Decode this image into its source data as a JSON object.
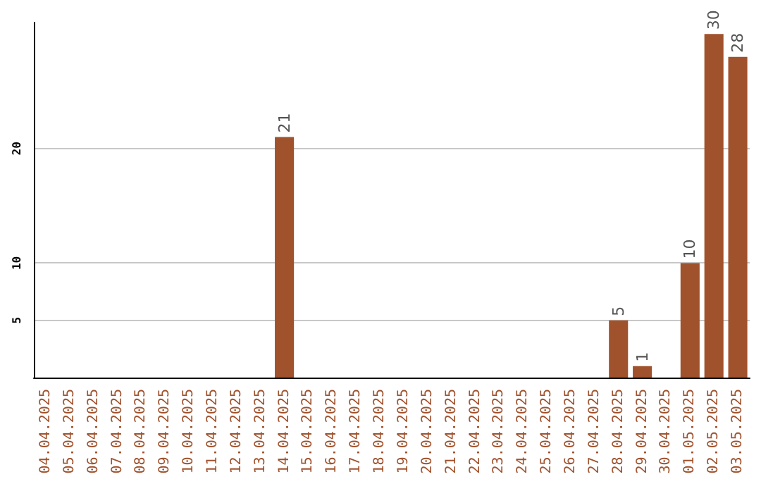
{
  "chart_data": {
    "type": "bar",
    "categories": [
      "04.04.2025",
      "05.04.2025",
      "06.04.2025",
      "07.04.2025",
      "08.04.2025",
      "09.04.2025",
      "10.04.2025",
      "11.04.2025",
      "12.04.2025",
      "13.04.2025",
      "14.04.2025",
      "15.04.2025",
      "16.04.2025",
      "17.04.2025",
      "18.04.2025",
      "19.04.2025",
      "20.04.2025",
      "21.04.2025",
      "22.04.2025",
      "23.04.2025",
      "24.04.2025",
      "25.04.2025",
      "26.04.2025",
      "27.04.2025",
      "28.04.2025",
      "29.04.2025",
      "30.04.2025",
      "01.05.2025",
      "02.05.2025",
      "03.05.2025"
    ],
    "values": [
      0,
      0,
      0,
      0,
      0,
      0,
      0,
      0,
      0,
      0,
      21,
      0,
      0,
      0,
      0,
      0,
      0,
      0,
      0,
      0,
      0,
      0,
      0,
      0,
      5,
      1,
      0,
      10,
      30,
      28
    ],
    "value_labels": [
      null,
      null,
      null,
      null,
      null,
      null,
      null,
      null,
      null,
      null,
      "21",
      null,
      null,
      null,
      null,
      null,
      null,
      null,
      null,
      null,
      null,
      null,
      null,
      null,
      "5",
      "1",
      null,
      "10",
      "30",
      "28"
    ],
    "color": "#a0522d",
    "ylim": [
      0,
      31
    ],
    "yticks": [
      5,
      10,
      20
    ],
    "grid": "y"
  }
}
